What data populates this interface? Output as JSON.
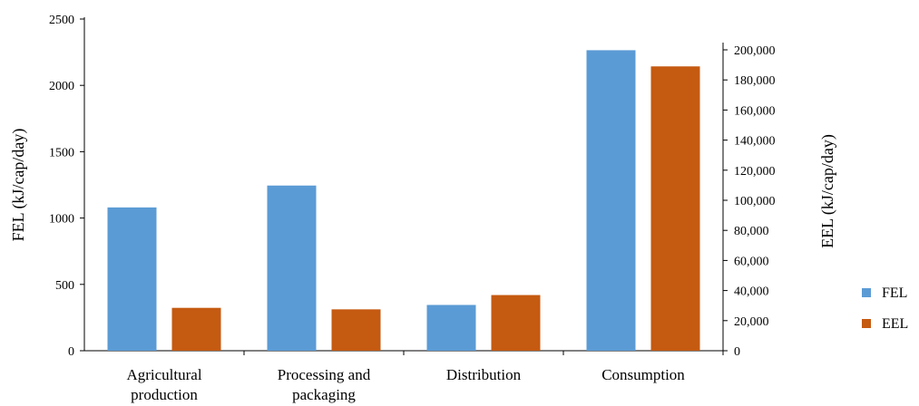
{
  "chart_data": {
    "type": "bar",
    "categories": [
      [
        "Agricultural",
        "production"
      ],
      [
        "Processing and",
        "packaging"
      ],
      [
        "Distribution"
      ],
      [
        "Consumption"
      ]
    ],
    "series": [
      {
        "name": "FEL",
        "axis": "left",
        "color": "#5b9bd5",
        "values": [
          1080,
          1245,
          345,
          2265
        ]
      },
      {
        "name": "EEL",
        "axis": "right",
        "color": "#c55a11",
        "values": [
          28500,
          27500,
          37000,
          189000
        ]
      }
    ],
    "ylabel": "FEL (kJ/cap/day)",
    "y2label": "EEL (kJ/cap/day)",
    "ylim": [
      0,
      2500
    ],
    "yticks": [
      0,
      500,
      1000,
      1500,
      2000,
      2500
    ],
    "yticks_text": [
      "0",
      "500",
      "1000",
      "1500",
      "2000",
      "2500"
    ],
    "y2lim": [
      0,
      200000
    ],
    "y2ticks": [
      0,
      20000,
      40000,
      60000,
      80000,
      100000,
      120000,
      140000,
      160000,
      180000,
      200000
    ],
    "y2ticks_text": [
      "0",
      "20,000",
      "40,000",
      "60,000",
      "80,000",
      "100,000",
      "120,000",
      "140,000",
      "160,000",
      "180,000",
      "200,000"
    ],
    "legend": "right",
    "grid": false
  }
}
